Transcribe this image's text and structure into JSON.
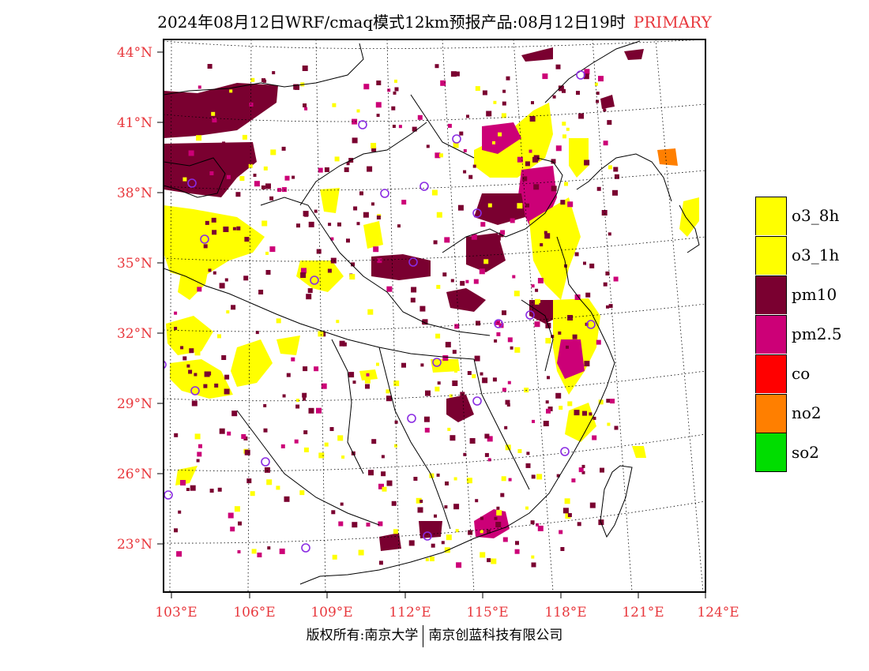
{
  "title": {
    "main": "2024年08月12日WRF/cmaq模式12km预报产品:08月12日19时",
    "mode": "PRIMARY",
    "mode_color": "#e8383d"
  },
  "map": {
    "lat_labels": [
      "44°N",
      "41°N",
      "38°N",
      "35°N",
      "32°N",
      "29°N",
      "26°N",
      "23°N"
    ],
    "lon_labels": [
      "103°E",
      "106°E",
      "109°E",
      "112°E",
      "115°E",
      "118°E",
      "121°E",
      "124°E"
    ],
    "label_color": "#e8383d"
  },
  "legend": {
    "items": [
      {
        "label": "o3_8h",
        "color": "#ffff00"
      },
      {
        "label": "o3_1h",
        "color": "#ffff00"
      },
      {
        "label": "pm10",
        "color": "#7a0030"
      },
      {
        "label": "pm2.5",
        "color": "#cc0077"
      },
      {
        "label": "co",
        "color": "#ff0000"
      },
      {
        "label": "no2",
        "color": "#ff7f00"
      },
      {
        "label": "so2",
        "color": "#00dd00"
      }
    ]
  },
  "footer": {
    "left": "版权所有:南京大学",
    "right": "南京创蓝科技有限公司"
  }
}
